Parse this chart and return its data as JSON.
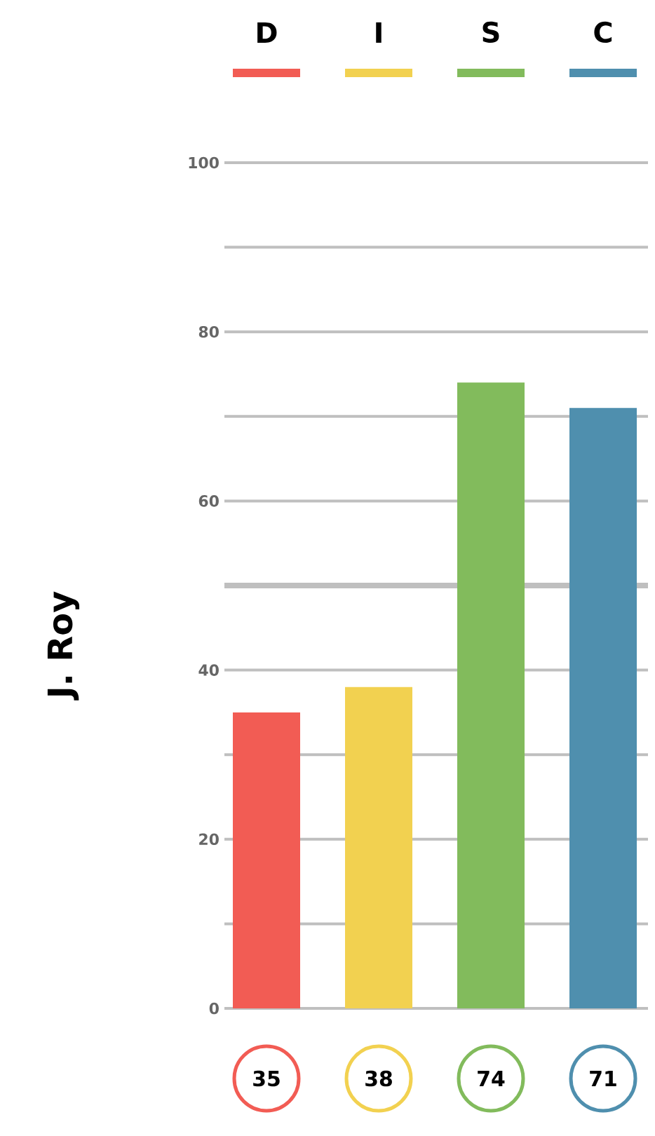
{
  "chart_data": {
    "type": "bar",
    "ylabel": "J. Roy",
    "categories": [
      "D",
      "I",
      "S",
      "C"
    ],
    "values": [
      35,
      38,
      74,
      71
    ],
    "colors": [
      "#f25c54",
      "#f2d150",
      "#82bb5c",
      "#4f8fae"
    ],
    "ylim": [
      0,
      100
    ],
    "yticks": [
      0,
      {
        "value": 10,
        "label": null
      },
      20,
      {
        "value": 30,
        "label": null
      },
      40,
      {
        "value": 50,
        "label": null
      },
      60,
      {
        "value": 70,
        "label": null
      },
      80,
      {
        "value": 90,
        "label": null
      },
      100
    ],
    "grid": "y",
    "data_labels": true,
    "ref_lines": [
      {
        "axis": "y",
        "value": 50
      }
    ]
  }
}
